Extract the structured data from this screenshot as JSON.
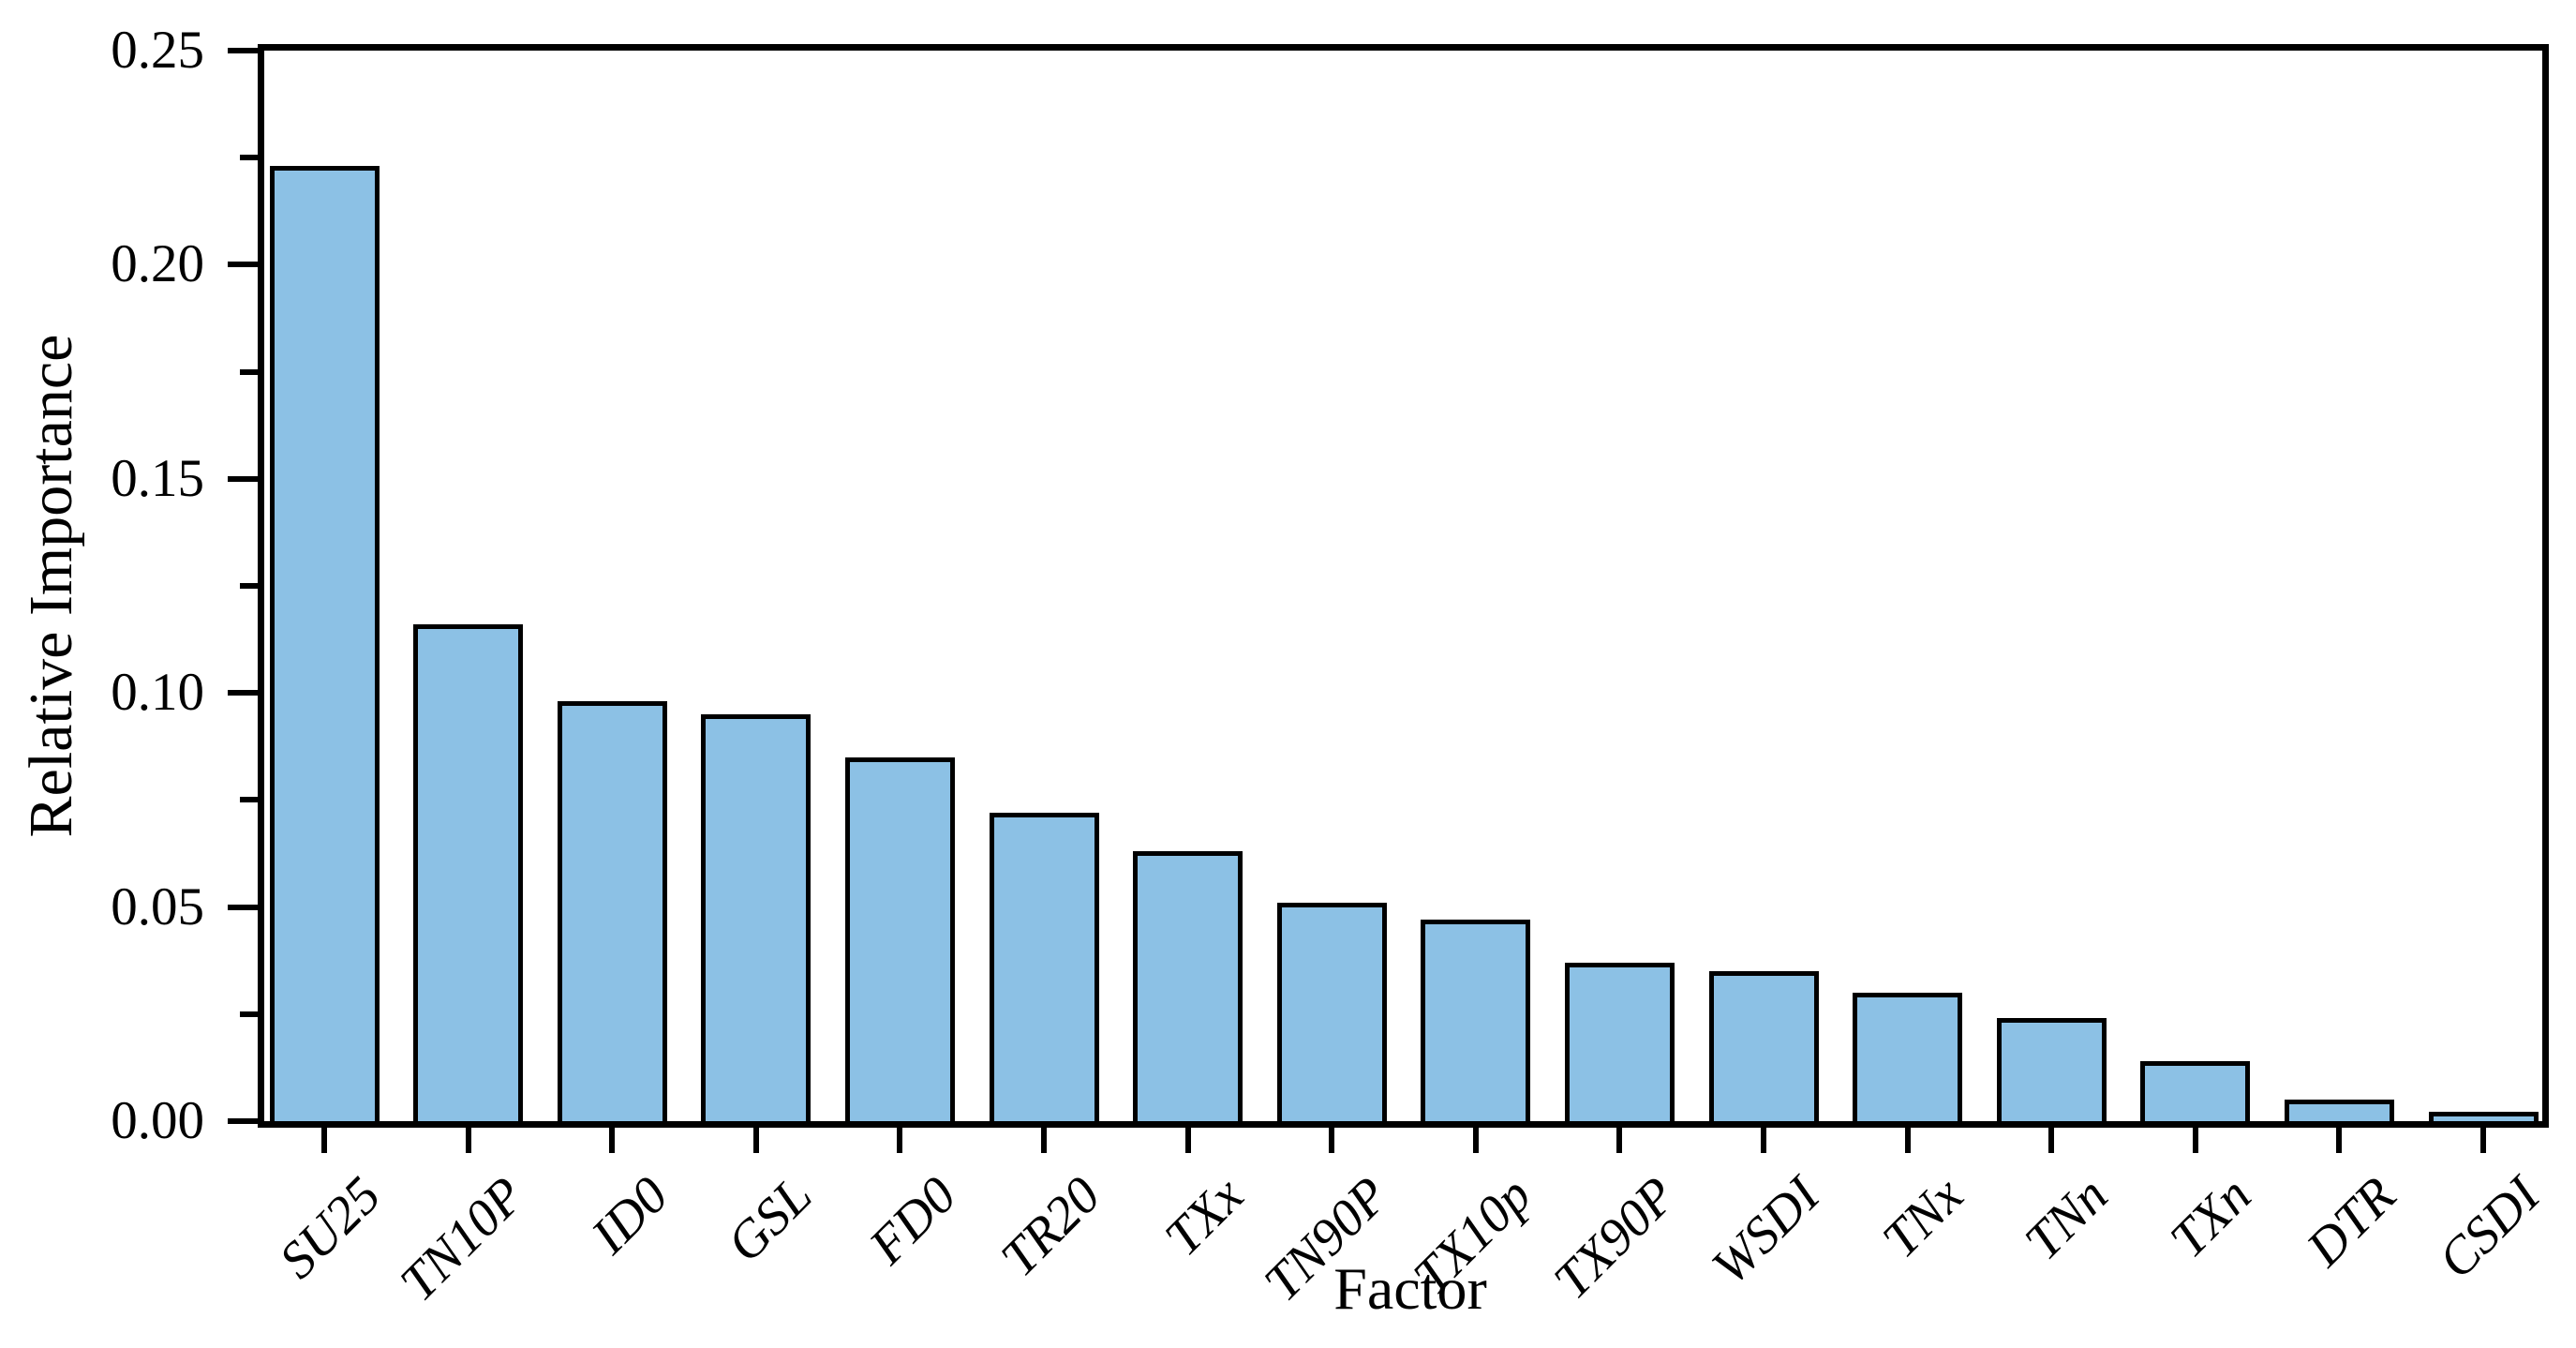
{
  "chart_data": {
    "type": "bar",
    "title": "",
    "xlabel": "Factor",
    "ylabel": "Relative Importance",
    "categories": [
      "SU25",
      "TN10P",
      "ID0",
      "GSL",
      "FD0",
      "TR20",
      "TXx",
      "TN90P",
      "TX10p",
      "TX90P",
      "WSDI",
      "TNx",
      "TNn",
      "TXn",
      "DTR",
      "CSDI"
    ],
    "values": [
      0.223,
      0.116,
      0.098,
      0.095,
      0.085,
      0.072,
      0.063,
      0.051,
      0.047,
      0.037,
      0.035,
      0.03,
      0.024,
      0.014,
      0.005,
      0.002
    ],
    "ylim": [
      0,
      0.25
    ],
    "ytick_major": [
      0.0,
      0.05,
      0.1,
      0.15,
      0.2,
      0.25
    ],
    "ytick_labels": [
      "0.00",
      "0.05",
      "0.10",
      "0.15",
      "0.20",
      "0.25"
    ],
    "ytick_minor": [
      0.025,
      0.075,
      0.125,
      0.175,
      0.225
    ],
    "grid": false,
    "legend": null,
    "bar_color": "#8CC1E5",
    "bar_edge_color": "#000000",
    "axis_color": "#000000",
    "background": "#FFFFFF"
  }
}
